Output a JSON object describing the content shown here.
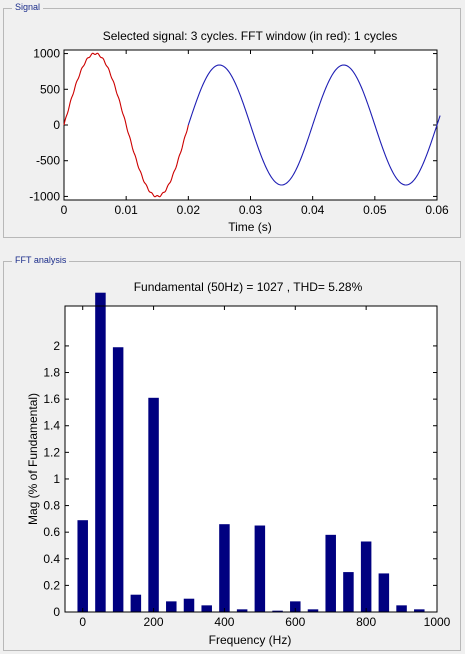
{
  "signal_panel": {
    "title": "Signal",
    "chart_title": "Selected signal: 3 cycles. FFT window (in red): 1 cycles",
    "xlabel": "Time (s)"
  },
  "fft_panel": {
    "title": "FFT analysis",
    "chart_title": "Fundamental (50Hz) = 1027 , THD= 5.28%",
    "xlabel": "Frequency (Hz)",
    "ylabel": "Mag (% of Fundamental)"
  },
  "chart_data": [
    {
      "type": "line",
      "title": "Selected signal: 3 cycles. FFT window (in red): 1 cycles",
      "xlabel": "Time (s)",
      "ylabel": "",
      "xlim": [
        0,
        0.06
      ],
      "ylim": [
        -1050,
        1050
      ],
      "xticks": [
        0,
        0.01,
        0.02,
        0.03,
        0.04,
        0.05,
        0.06
      ],
      "xtick_labels": [
        "0",
        "0.01",
        "0.02",
        "0.03",
        "0.04",
        "0.05",
        "0.06"
      ],
      "yticks": [
        -1000,
        -500,
        0,
        500,
        1000
      ],
      "ytick_labels": [
        "-1000",
        "-500",
        "0",
        "500",
        "1000"
      ],
      "series": [
        {
          "color": "#cc0000",
          "x_range": [
            0,
            0.02
          ],
          "amplitude": 1000,
          "frequency_hz": 50
        },
        {
          "color": "#1f1fb4",
          "x_range": [
            0.02,
            0.0605
          ],
          "amplitude": 840,
          "frequency_hz": 50
        }
      ]
    },
    {
      "type": "bar",
      "title": "Fundamental (50Hz) = 1027 , THD= 5.28%",
      "xlabel": "Frequency (Hz)",
      "ylabel": "Mag (% of Fundamental)",
      "xlim": [
        -50,
        1000
      ],
      "ylim": [
        0,
        2.3
      ],
      "xticks": [
        0,
        200,
        400,
        600,
        800,
        1000
      ],
      "xtick_labels": [
        "0",
        "200",
        "400",
        "600",
        "800",
        "1000"
      ],
      "yticks": [
        0,
        0.2,
        0.4,
        0.6,
        0.8,
        1,
        1.2,
        1.4,
        1.6,
        1.8,
        2
      ],
      "ytick_labels": [
        "0",
        "0.2",
        "0.4",
        "0.6",
        "0.8",
        "1",
        "1.2",
        "1.4",
        "1.6",
        "1.8",
        "2"
      ],
      "bar_color": "#000080",
      "x": [
        0,
        50,
        100,
        150,
        200,
        250,
        300,
        350,
        400,
        450,
        500,
        550,
        600,
        650,
        700,
        750,
        800,
        850,
        900,
        950
      ],
      "values": [
        0.69,
        2.4,
        1.99,
        0.13,
        1.61,
        0.08,
        0.1,
        0.05,
        0.66,
        0.02,
        0.65,
        0.01,
        0.08,
        0.02,
        0.58,
        0.3,
        0.53,
        0.29,
        0.05,
        0.02
      ]
    }
  ]
}
